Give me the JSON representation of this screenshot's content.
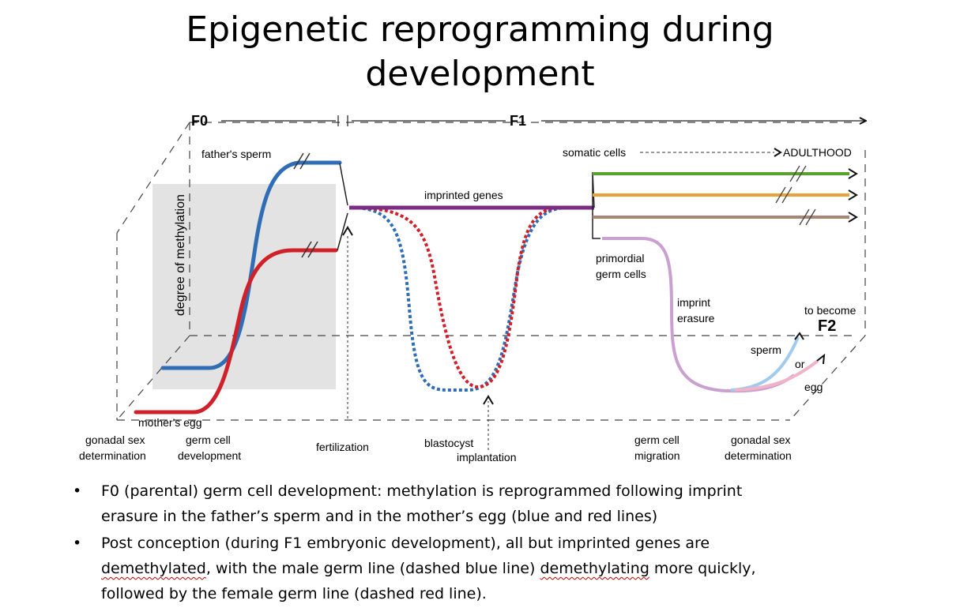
{
  "slide": {
    "title_line1": "Epigenetic reprogramming during",
    "title_line2": "development"
  },
  "diagram": {
    "generation_left": "F0",
    "generation_right": "F1",
    "yaxis_label": "degree of methylation",
    "labels": {
      "fathers_sperm": "father's sperm",
      "mothers_egg": "mother's egg",
      "imprinted_genes": "imprinted genes",
      "somatic_cells": "somatic cells",
      "adulthood": "ADULTHOOD",
      "primordial_line1": "primordial",
      "primordial_line2": "germ cells",
      "imprint_line1": "imprint",
      "imprint_line2": "erasure",
      "to_become": "to become",
      "f2": "F2",
      "sperm": "sperm",
      "or": "or",
      "egg": "egg"
    },
    "stages": {
      "gonadal_left_line1": "gonadal sex",
      "gonadal_left_line2": "determination",
      "germ_dev_line1": "germ cell",
      "germ_dev_line2": "development",
      "fertilization": "fertilization",
      "blastocyst": "blastocyst",
      "implantation": "implantation",
      "migration_line1": "germ cell",
      "migration_line2": "migration",
      "gonadal_right_line1": "gonadal sex",
      "gonadal_right_line2": "determination"
    },
    "colors": {
      "paternal": "#2f6eb5",
      "maternal": "#d0202a",
      "imprinted": "#7b2b83",
      "somatic_green": "#5aa02c",
      "somatic_orange": "#e9a23b",
      "somatic_brown": "#a98672",
      "germline": "#c9a0cf",
      "sperm_line": "#9fcbee",
      "egg_line": "#f1b3c8",
      "shade": "#e3e3e3"
    }
  },
  "bullets": [
    {
      "line1": "F0 (parental) germ cell development: methylation is reprogrammed following imprint",
      "line2": "erasure in the father’s sperm and in the mother’s egg (blue and red lines)"
    },
    {
      "line1": "Post conception (during F1 embryonic development), all but imprinted genes are",
      "line2_word1": "demethylated",
      "line2_mid": ", with the male germ line (dashed blue line) ",
      "line2_word2": "demethylating",
      "line2_end": " more quickly,",
      "line3": "followed by the female germ line (dashed red line)."
    }
  ]
}
